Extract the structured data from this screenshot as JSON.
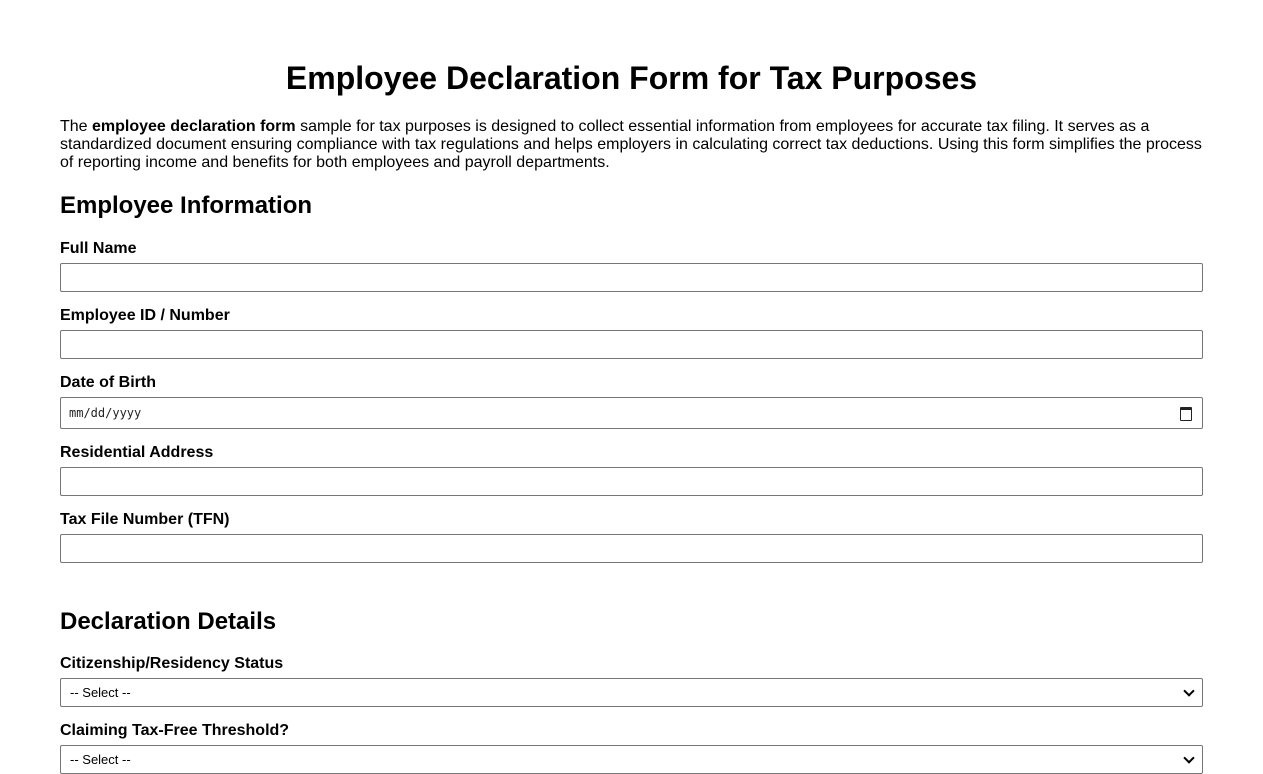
{
  "title": "Employee Declaration Form for Tax Purposes",
  "intro": {
    "prefix": "The ",
    "bold": "employee declaration form",
    "suffix": " sample for tax purposes is designed to collect essential information from employees for accurate tax filing. It serves as a standardized document ensuring compliance with tax regulations and helps employers in calculating correct tax deductions. Using this form simplifies the process of reporting income and benefits for both employees and payroll departments."
  },
  "employee_section": {
    "heading": "Employee Information",
    "fields": [
      {
        "label": "Full Name",
        "value": ""
      },
      {
        "label": "Employee ID / Number",
        "value": ""
      },
      {
        "label": "Date of Birth",
        "placeholder": "mm/dd/yyyy"
      },
      {
        "label": "Residential Address",
        "value": ""
      },
      {
        "label": "Tax File Number (TFN)",
        "value": ""
      }
    ]
  },
  "declaration_section": {
    "heading": "Declaration Details",
    "fields": [
      {
        "label": "Citizenship/Residency Status",
        "selected": "-- Select --"
      },
      {
        "label": "Claiming Tax-Free Threshold?",
        "selected": "-- Select --"
      }
    ]
  }
}
